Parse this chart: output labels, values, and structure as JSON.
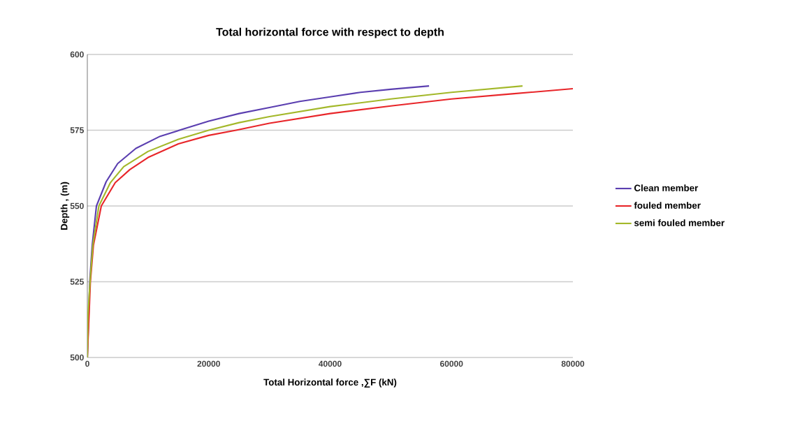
{
  "chart_data": {
    "type": "line",
    "title": "Total horizontal force with respect to depth",
    "xlabel": "Total Horizontal force ,∑F (kN)",
    "ylabel": "Depth , (m)",
    "xlim": [
      0,
      80000
    ],
    "xticks": [
      0,
      20000,
      40000,
      60000,
      80000
    ],
    "ylim": [
      500,
      600
    ],
    "yticks": [
      500,
      525,
      550,
      575,
      600
    ],
    "grid": "y",
    "legend": "right",
    "marker": "none",
    "line_style": "solid",
    "series": [
      {
        "name": "Clean member",
        "color": "#5b3fb0",
        "x": [
          0,
          400,
          800,
          1500,
          3100,
          5000,
          8000,
          12000,
          16000,
          20000,
          25000,
          30000,
          35000,
          40000,
          45000,
          50000,
          56300
        ],
        "values": [
          500,
          525,
          537,
          550,
          558,
          564,
          569,
          573,
          575.5,
          578,
          580.5,
          582.5,
          584.5,
          586,
          587.5,
          588.5,
          589.6
        ]
      },
      {
        "name": "fouled member",
        "color": "#e8262a",
        "x": [
          0,
          500,
          1000,
          2300,
          4600,
          7000,
          10000,
          15000,
          20000,
          24500,
          30000,
          40000,
          50000,
          60000,
          70000,
          80000
        ],
        "values": [
          500,
          525,
          537,
          550,
          557.7,
          562,
          566,
          570.5,
          573.3,
          575,
          577.3,
          580.5,
          583,
          585.3,
          587,
          588.7
        ]
      },
      {
        "name": "semi fouled member",
        "color": "#a3b82a",
        "x": [
          0,
          100,
          450,
          900,
          1900,
          3800,
          6000,
          10000,
          15000,
          20000,
          25000,
          30000,
          40000,
          50000,
          60000,
          71700
        ],
        "values": [
          500,
          514,
          525,
          537,
          550,
          557.7,
          563,
          568,
          572,
          575,
          577.5,
          579.5,
          582.8,
          585.3,
          587.5,
          589.6
        ]
      }
    ]
  }
}
